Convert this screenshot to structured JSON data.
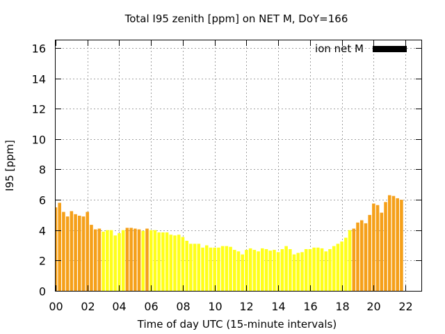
{
  "chart_data": {
    "type": "bar",
    "title": "Total I95 zenith [ppm] on NET M, DoY=166",
    "xlabel": "Time of day UTC (15-minute intervals)",
    "ylabel": "I95 [ppm]",
    "xlim": [
      0,
      23
    ],
    "ylim": [
      0,
      16.5
    ],
    "x_ticks": [
      "00",
      "02",
      "04",
      "06",
      "08",
      "10",
      "12",
      "14",
      "16",
      "18",
      "20",
      "22"
    ],
    "y_ticks": [
      "0",
      "2",
      "4",
      "6",
      "8",
      "10",
      "12",
      "14",
      "16"
    ],
    "grid": true,
    "legend": {
      "position": "top-right",
      "label": "ion net M",
      "color": "#000000"
    },
    "colors": {
      "orange": "#f5a01a",
      "yellow": "#ffff1a"
    },
    "bar_interval_hours": 0.25,
    "values": [
      5.5,
      5.8,
      5.2,
      4.9,
      5.25,
      5.05,
      4.95,
      4.9,
      5.2,
      4.35,
      4.05,
      4.1,
      3.9,
      4.0,
      4.0,
      3.65,
      3.8,
      4.0,
      4.15,
      4.15,
      4.1,
      4.05,
      3.95,
      4.1,
      4.0,
      4.0,
      3.85,
      3.85,
      3.85,
      3.7,
      3.65,
      3.7,
      3.55,
      3.3,
      3.1,
      3.1,
      3.1,
      2.85,
      3.0,
      2.85,
      2.85,
      2.85,
      2.95,
      2.95,
      2.9,
      2.7,
      2.6,
      2.4,
      2.7,
      2.8,
      2.7,
      2.6,
      2.8,
      2.75,
      2.65,
      2.7,
      2.55,
      2.75,
      2.95,
      2.75,
      2.4,
      2.5,
      2.55,
      2.75,
      2.75,
      2.85,
      2.85,
      2.8,
      2.6,
      2.75,
      2.95,
      3.1,
      3.25,
      3.5,
      4.0,
      4.1,
      4.5,
      4.65,
      4.45,
      5.0,
      5.75,
      5.65,
      5.15,
      5.85,
      6.3,
      6.25,
      6.1,
      6.0
    ],
    "bar_colors": [
      "orange",
      "orange",
      "orange",
      "orange",
      "orange",
      "orange",
      "orange",
      "orange",
      "orange",
      "orange",
      "orange",
      "orange",
      "yellow",
      "yellow",
      "yellow",
      "yellow",
      "yellow",
      "yellow",
      "orange",
      "orange",
      "orange",
      "orange",
      "yellow",
      "orange",
      "yellow",
      "yellow",
      "yellow",
      "yellow",
      "yellow",
      "yellow",
      "yellow",
      "yellow",
      "yellow",
      "yellow",
      "yellow",
      "yellow",
      "yellow",
      "yellow",
      "yellow",
      "yellow",
      "yellow",
      "yellow",
      "yellow",
      "yellow",
      "yellow",
      "yellow",
      "yellow",
      "yellow",
      "yellow",
      "yellow",
      "yellow",
      "yellow",
      "yellow",
      "yellow",
      "yellow",
      "yellow",
      "yellow",
      "yellow",
      "yellow",
      "yellow",
      "yellow",
      "yellow",
      "yellow",
      "yellow",
      "yellow",
      "yellow",
      "yellow",
      "yellow",
      "yellow",
      "yellow",
      "yellow",
      "yellow",
      "yellow",
      "yellow",
      "yellow",
      "orange",
      "orange",
      "orange",
      "orange",
      "orange",
      "orange",
      "orange",
      "orange",
      "orange",
      "orange",
      "orange",
      "orange",
      "orange"
    ]
  }
}
